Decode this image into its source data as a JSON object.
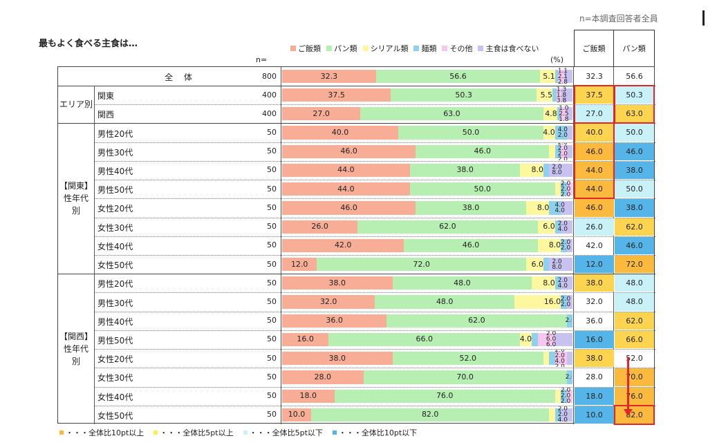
{
  "page_note": "n=本調査回答者全員",
  "chart_data": {
    "type": "bar",
    "stacked": true,
    "orientation": "horizontal",
    "title": "最もよく食べる主食は…",
    "n_header": "n=",
    "unit": "(%)",
    "series": [
      {
        "name": "ご飯類",
        "color": "#f8ad96"
      },
      {
        "name": "パン類",
        "color": "#b6efb1"
      },
      {
        "name": "シリアル類",
        "color": "#fdf8a0"
      },
      {
        "name": "麺類",
        "color": "#8fd0ec"
      },
      {
        "name": "その他",
        "color": "#f5c6ee"
      },
      {
        "name": "主食は食べない",
        "color": "#c8c2f1"
      }
    ],
    "groups": [
      {
        "label": "",
        "rows": [
          0
        ]
      },
      {
        "label": "エリア別",
        "rows": [
          1,
          2
        ]
      },
      {
        "label": "【関東】性年代別",
        "lines": [
          "【関東】",
          "性年代",
          "別"
        ],
        "rows": [
          3,
          4,
          5,
          6,
          7,
          8,
          9,
          10
        ]
      },
      {
        "label": "【関西】性年代別",
        "lines": [
          "【関西】",
          "性年代",
          "別"
        ],
        "rows": [
          11,
          12,
          13,
          14,
          15,
          16,
          17,
          18
        ]
      }
    ],
    "rows": [
      {
        "label": "全 体",
        "n": 800,
        "values": [
          32.3,
          56.6,
          5.1,
          1.1,
          2.1,
          2.8
        ],
        "cells": [
          "32.3",
          "56.6"
        ],
        "colors": [
          "",
          ""
        ]
      },
      {
        "label": "関東",
        "n": 400,
        "values": [
          37.5,
          50.3,
          5.5,
          1.3,
          1.8,
          3.8
        ],
        "cells": [
          "37.5",
          "50.3"
        ],
        "colors": [
          "#fcd44f",
          "#c8f1f8"
        ]
      },
      {
        "label": "関西",
        "n": 400,
        "values": [
          27.0,
          63.0,
          4.8,
          1.0,
          2.5,
          1.8
        ],
        "cells": [
          "27.0",
          "63.0"
        ],
        "colors": [
          "#c8f1f8",
          "#fcd44f"
        ]
      },
      {
        "label": "男性20代",
        "n": 50,
        "values": [
          40.0,
          50.0,
          4.0,
          4.0,
          0.0,
          2.0
        ],
        "cells": [
          "40.0",
          "50.0"
        ],
        "colors": [
          "#fcd44f",
          "#c8f1f8"
        ]
      },
      {
        "label": "男性30代",
        "n": 50,
        "values": [
          46.0,
          46.0,
          2.0,
          2.0,
          2.0,
          2.0
        ],
        "cells": [
          "46.0",
          "46.0"
        ],
        "colors": [
          "#fbb93e",
          "#55b5e8"
        ]
      },
      {
        "label": "男性40代",
        "n": 50,
        "values": [
          44.0,
          38.0,
          8.0,
          2.0,
          0.0,
          8.0
        ],
        "cells": [
          "44.0",
          "38.0"
        ],
        "colors": [
          "#fbb93e",
          "#55b5e8"
        ]
      },
      {
        "label": "男性50代",
        "n": 50,
        "values": [
          44.0,
          50.0,
          2.0,
          2.0,
          2.0,
          0.0
        ],
        "cells": [
          "44.0",
          "50.0"
        ],
        "colors": [
          "#fbb93e",
          "#c8f1f8"
        ]
      },
      {
        "label": "女性20代",
        "n": 50,
        "values": [
          46.0,
          38.0,
          8.0,
          4.0,
          0.0,
          4.0
        ],
        "cells": [
          "46.0",
          "38.0"
        ],
        "colors": [
          "#fbb93e",
          "#55b5e8"
        ]
      },
      {
        "label": "女性30代",
        "n": 50,
        "values": [
          26.0,
          62.0,
          6.0,
          2.0,
          0.0,
          4.0
        ],
        "cells": [
          "26.0",
          "62.0"
        ],
        "colors": [
          "#c8f1f8",
          "#fcd44f"
        ]
      },
      {
        "label": "女性40代",
        "n": 50,
        "values": [
          42.0,
          46.0,
          8.0,
          2.0,
          0.0,
          2.0
        ],
        "cells": [
          "42.0",
          "46.0"
        ],
        "colors": [
          "",
          "#55b5e8"
        ]
      },
      {
        "label": "女性50代",
        "n": 50,
        "values": [
          12.0,
          72.0,
          6.0,
          2.0,
          0.0,
          8.0
        ],
        "cells": [
          "12.0",
          "72.0"
        ],
        "colors": [
          "#55b5e8",
          "#fbb93e"
        ]
      },
      {
        "label": "男性20代",
        "n": 50,
        "values": [
          38.0,
          48.0,
          8.0,
          2.0,
          0.0,
          4.0
        ],
        "cells": [
          "38.0",
          "48.0"
        ],
        "colors": [
          "#fcd44f",
          "#c8f1f8"
        ]
      },
      {
        "label": "男性30代",
        "n": 50,
        "values": [
          32.0,
          48.0,
          16.0,
          2.0,
          0.0,
          2.0
        ],
        "cells": [
          "32.0",
          "48.0"
        ],
        "colors": [
          "",
          "#c8f1f8"
        ]
      },
      {
        "label": "男性40代",
        "n": 50,
        "values": [
          36.0,
          62.0,
          0.0,
          2.0,
          0.0,
          0.0
        ],
        "cells": [
          "36.0",
          "62.0"
        ],
        "colors": [
          "",
          "#fcd44f"
        ]
      },
      {
        "label": "男性50代",
        "n": 50,
        "values": [
          16.0,
          66.0,
          4.0,
          2.0,
          6.0,
          6.0
        ],
        "cells": [
          "16.0",
          "66.0"
        ],
        "colors": [
          "#55b5e8",
          "#fcd44f"
        ]
      },
      {
        "label": "女性20代",
        "n": 50,
        "values": [
          38.0,
          52.0,
          2.0,
          2.0,
          4.0,
          2.0
        ],
        "cells": [
          "38.0",
          "52.0"
        ],
        "colors": [
          "#fcd44f",
          ""
        ]
      },
      {
        "label": "女性30代",
        "n": 50,
        "values": [
          28.0,
          70.0,
          0.0,
          2.0,
          0.0,
          0.0
        ],
        "cells": [
          "28.0",
          "70.0"
        ],
        "colors": [
          "",
          "#fbb93e"
        ]
      },
      {
        "label": "女性40代",
        "n": 50,
        "values": [
          18.0,
          76.0,
          2.0,
          2.0,
          2.0,
          0.0
        ],
        "cells": [
          "18.0",
          "76.0"
        ],
        "colors": [
          "#55b5e8",
          "#fbb93e"
        ]
      },
      {
        "label": "女性50代",
        "n": 50,
        "values": [
          10.0,
          82.0,
          2.0,
          2.0,
          0.0,
          4.0
        ],
        "cells": [
          "10.0",
          "82.0"
        ],
        "colors": [
          "#55b5e8",
          "#fbb93e"
        ]
      }
    ],
    "highlight_columns": [
      "ご飯類",
      "パン類"
    ],
    "highlight_boxes": [
      {
        "column": 0,
        "from_row": 1,
        "to_row": 2
      },
      {
        "column": 1,
        "from_row": 1,
        "to_row": 2
      },
      {
        "column": 0,
        "from_row": 3,
        "to_row": 6
      },
      {
        "column": 1,
        "from_row": 18,
        "to_row": 18
      }
    ],
    "legend_bottom": [
      {
        "label": "・・・全体比10pt以上",
        "color": "#fbb93e"
      },
      {
        "label": "・・・全体比5pt以上",
        "color": "#fcf050"
      },
      {
        "label": "・・・全体比5pt以下",
        "color": "#c8f1f8"
      },
      {
        "label": "・・・全体比10pt以下",
        "color": "#55b5e8"
      }
    ]
  }
}
